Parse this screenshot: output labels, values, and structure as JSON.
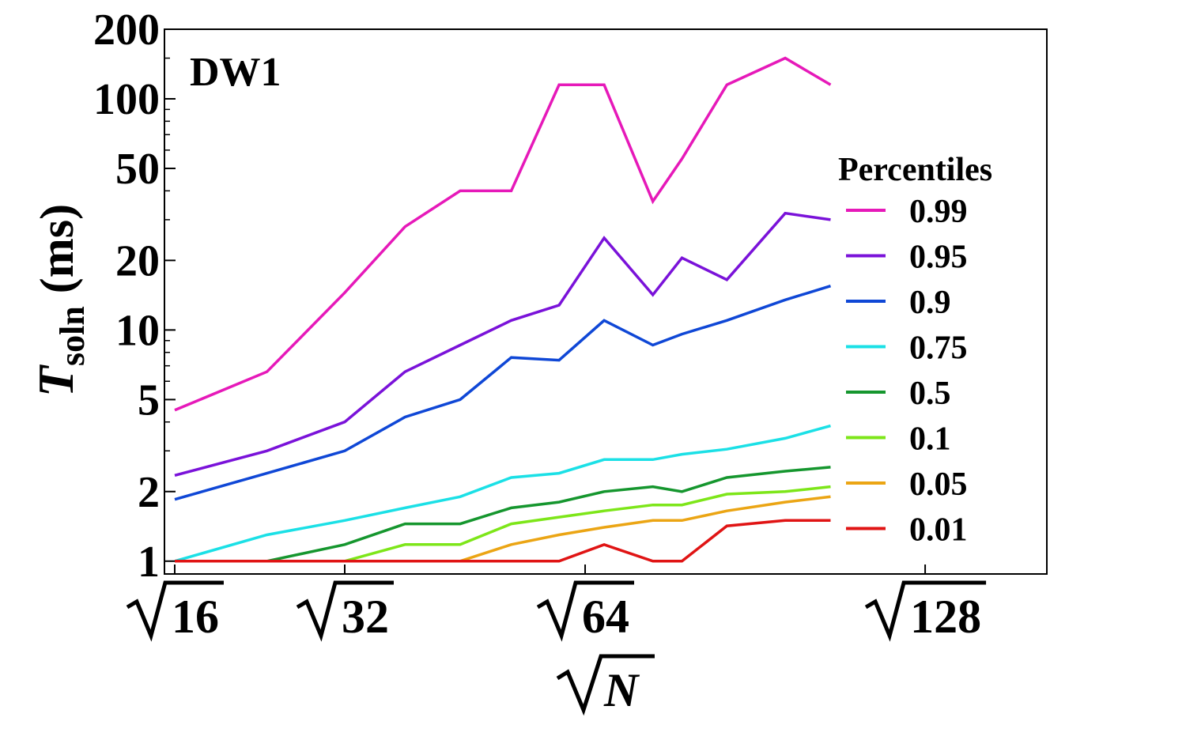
{
  "chart_data": {
    "type": "line",
    "panel_label": "DW1",
    "xlabel": "N",
    "ylabel_main": "T",
    "ylabel_sub": "soln",
    "ylabel_units": "(ms)",
    "yscale": "log",
    "ylim": [
      0.88,
      200
    ],
    "xlim": [
      3.9,
      12.5
    ],
    "yticks": [
      {
        "value": 1,
        "label": "1"
      },
      {
        "value": 2,
        "label": "2"
      },
      {
        "value": 5,
        "label": "5"
      },
      {
        "value": 10,
        "label": "10"
      },
      {
        "value": 20,
        "label": "20"
      },
      {
        "value": 50,
        "label": "50"
      },
      {
        "value": 100,
        "label": "100"
      },
      {
        "value": 200,
        "label": "200"
      }
    ],
    "xticks": [
      {
        "value": 4,
        "label": "16"
      },
      {
        "value": 5.657,
        "label": "32"
      },
      {
        "value": 8,
        "label": "64"
      },
      {
        "value": 11.314,
        "label": "128"
      }
    ],
    "x": [
      4.0,
      4.899,
      5.657,
      6.245,
      6.782,
      7.28,
      7.746,
      8.185,
      8.66,
      8.944,
      9.381,
      9.95,
      10.392
    ],
    "legend_title": "Percentiles",
    "legend_position": "right",
    "series": [
      {
        "name": "0.99",
        "color": "#e619b9",
        "values": [
          4.5,
          6.6,
          14.5,
          28,
          40,
          40,
          115,
          115,
          36,
          55,
          115,
          150,
          115
        ]
      },
      {
        "name": "0.95",
        "color": "#7a12d9",
        "values": [
          2.35,
          3.0,
          4.0,
          6.6,
          8.6,
          11,
          12.8,
          25,
          14.2,
          20.5,
          16.5,
          32,
          30
        ]
      },
      {
        "name": "0.9",
        "color": "#0f47d6",
        "values": [
          1.85,
          2.4,
          3.0,
          4.2,
          5.0,
          7.6,
          7.4,
          11,
          8.6,
          9.6,
          11,
          13.5,
          15.5
        ]
      },
      {
        "name": "0.75",
        "color": "#1be0e6",
        "values": [
          1.0,
          1.3,
          1.5,
          1.7,
          1.9,
          2.3,
          2.4,
          2.75,
          2.75,
          2.9,
          3.05,
          3.4,
          3.85
        ]
      },
      {
        "name": "0.5",
        "color": "#15962e",
        "values": [
          1.0,
          1.0,
          1.18,
          1.45,
          1.45,
          1.7,
          1.8,
          2.0,
          2.1,
          2.0,
          2.3,
          2.45,
          2.55
        ]
      },
      {
        "name": "0.1",
        "color": "#7de619",
        "values": [
          1.0,
          1.0,
          1.0,
          1.18,
          1.18,
          1.45,
          1.55,
          1.65,
          1.75,
          1.75,
          1.95,
          2.0,
          2.1
        ]
      },
      {
        "name": "0.05",
        "color": "#eba514",
        "values": [
          1.0,
          1.0,
          1.0,
          1.0,
          1.0,
          1.18,
          1.3,
          1.4,
          1.5,
          1.5,
          1.65,
          1.8,
          1.9
        ]
      },
      {
        "name": "0.01",
        "color": "#e01414",
        "values": [
          1.0,
          1.0,
          1.0,
          1.0,
          1.0,
          1.0,
          1.0,
          1.18,
          1.0,
          1.0,
          1.42,
          1.5,
          1.5
        ]
      }
    ]
  }
}
